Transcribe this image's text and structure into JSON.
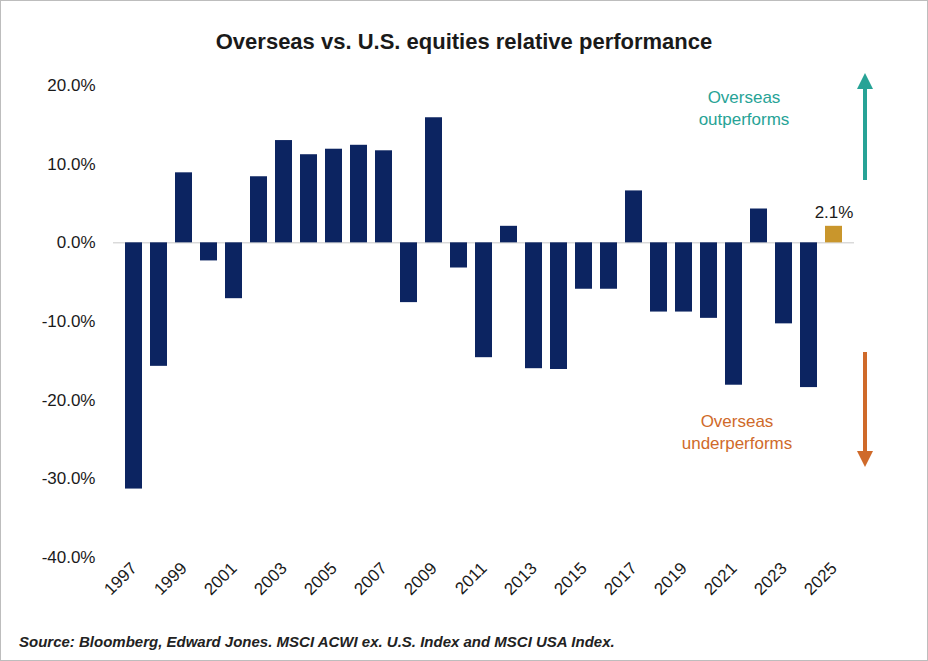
{
  "chart_data": {
    "type": "bar",
    "title": "Overseas vs. U.S. equities relative performance",
    "caption": "Source: Bloomberg, Edward Jones. MSCI ACWI ex. U.S. Index and MSCI USA Index.",
    "categories": [
      "1997",
      null,
      "1999",
      null,
      "2001",
      null,
      "2003",
      null,
      "2005",
      null,
      "2007",
      null,
      "2009",
      null,
      "2011",
      null,
      "2013",
      null,
      "2015",
      null,
      "2017",
      null,
      "2019",
      null,
      "2021",
      null,
      "2023",
      null,
      "2025"
    ],
    "values": [
      -31.3,
      -15.7,
      8.9,
      -2.3,
      -7.1,
      8.4,
      13.0,
      11.2,
      11.9,
      12.4,
      11.7,
      -7.6,
      15.9,
      -3.2,
      -14.6,
      2.1,
      -16.0,
      -16.1,
      -5.9,
      -5.9,
      6.6,
      -8.8,
      -8.8,
      -9.6,
      -18.1,
      4.3,
      -10.3,
      -18.4,
      2.1
    ],
    "colors": [
      "#0c2461",
      "#0c2461",
      "#0c2461",
      "#0c2461",
      "#0c2461",
      "#0c2461",
      "#0c2461",
      "#0c2461",
      "#0c2461",
      "#0c2461",
      "#0c2461",
      "#0c2461",
      "#0c2461",
      "#0c2461",
      "#0c2461",
      "#0c2461",
      "#0c2461",
      "#0c2461",
      "#0c2461",
      "#0c2461",
      "#0c2461",
      "#0c2461",
      "#0c2461",
      "#0c2461",
      "#0c2461",
      "#0c2461",
      "#0c2461",
      "#0c2461",
      "#c9962c"
    ],
    "value_labels": [
      null,
      null,
      null,
      null,
      null,
      null,
      null,
      null,
      null,
      null,
      null,
      null,
      null,
      null,
      null,
      null,
      null,
      null,
      null,
      null,
      null,
      null,
      null,
      null,
      null,
      null,
      null,
      null,
      "2.1%"
    ],
    "ylim": [
      -40,
      20
    ],
    "yticks": [
      {
        "value": -40,
        "label": "-40.0%"
      },
      {
        "value": -30,
        "label": "-30.0%"
      },
      {
        "value": -20,
        "label": "-20.0%"
      },
      {
        "value": -10,
        "label": "-10.0%"
      },
      {
        "value": 0,
        "label": "0.0%"
      },
      {
        "value": 10,
        "label": "10.0%"
      },
      {
        "value": 20,
        "label": "20.0%"
      }
    ],
    "grid": false,
    "annotations": [
      {
        "text": "Overseas\noutperforms",
        "color": "#27a396"
      },
      {
        "text": "Overseas\nunderperforms",
        "color": "#cf6a2a"
      }
    ]
  }
}
